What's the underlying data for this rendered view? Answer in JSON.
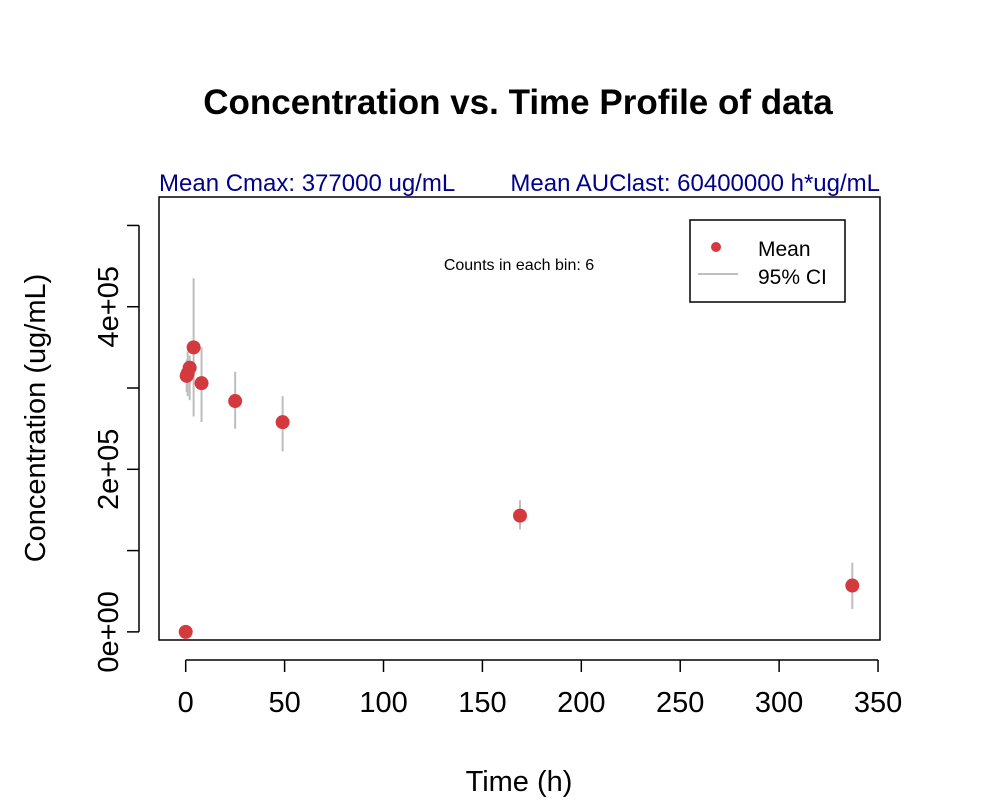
{
  "chart_data": {
    "type": "scatter",
    "title": "Concentration vs. Time Profile of data",
    "subtitle_left": "Mean Cmax: 377000 ug/mL",
    "subtitle_right": "Mean AUClast: 60400000 h*ug/mL",
    "xlabel": "Time (h)",
    "ylabel": "Concentration (ug/mL)",
    "annotation": "Counts in each bin: 6",
    "xlim": [
      -13.5,
      351
    ],
    "ylim": [
      -10000,
      535000
    ],
    "x_ticks": [
      0,
      50,
      100,
      150,
      200,
      250,
      300,
      350
    ],
    "x_tick_labels": [
      "0",
      "50",
      "100",
      "150",
      "200",
      "250",
      "300",
      "350"
    ],
    "y_ticks": [
      0,
      100000,
      200000,
      300000,
      400000,
      500000
    ],
    "y_tick_labels": [
      "0e+00",
      "",
      "2e+05",
      "",
      "4e+05",
      ""
    ],
    "grid": false,
    "legend_position": "top-right",
    "legend": [
      {
        "label": "Mean",
        "kind": "point",
        "color": "#d3393d"
      },
      {
        "label": "95% CI",
        "kind": "line",
        "color": "#bebebe"
      }
    ],
    "series": [
      {
        "name": "Mean",
        "color": "#d3393d",
        "ci_color": "#bebebe",
        "points": [
          {
            "x": 0,
            "y": 0,
            "lo": 0,
            "hi": 0
          },
          {
            "x": 0.5,
            "y": 315000,
            "lo": 295000,
            "hi": 335000
          },
          {
            "x": 1,
            "y": 318000,
            "lo": 290000,
            "hi": 345000
          },
          {
            "x": 2,
            "y": 325000,
            "lo": 285000,
            "hi": 340000
          },
          {
            "x": 4,
            "y": 350000,
            "lo": 265000,
            "hi": 435000
          },
          {
            "x": 8,
            "y": 306000,
            "lo": 258000,
            "hi": 350000
          },
          {
            "x": 25,
            "y": 284000,
            "lo": 250000,
            "hi": 320000
          },
          {
            "x": 49,
            "y": 258000,
            "lo": 222000,
            "hi": 290000
          },
          {
            "x": 169,
            "y": 143000,
            "lo": 126000,
            "hi": 162000
          },
          {
            "x": 337,
            "y": 57000,
            "lo": 28000,
            "hi": 85000
          }
        ]
      }
    ]
  }
}
